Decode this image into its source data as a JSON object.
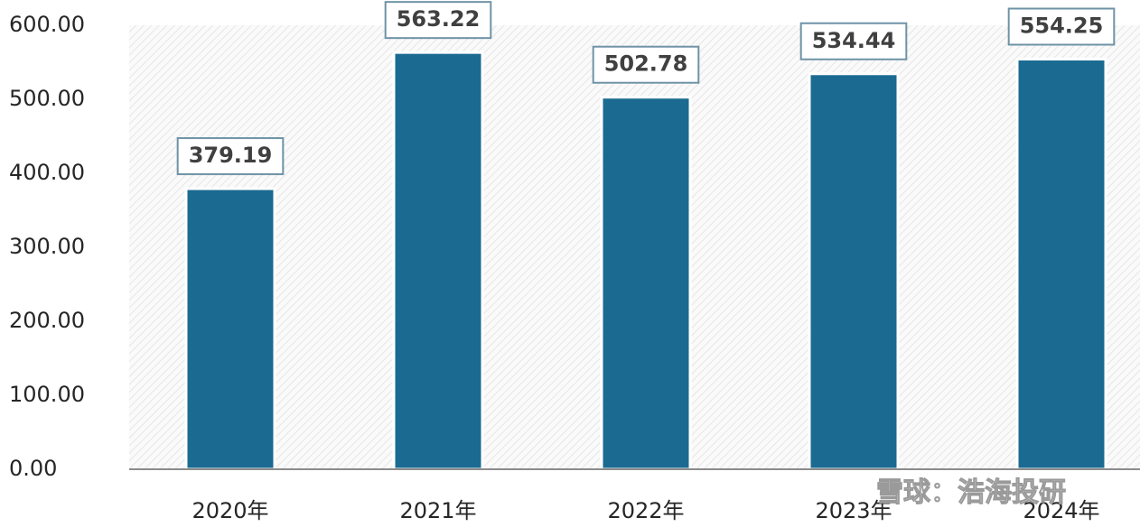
{
  "chart_data": {
    "type": "bar",
    "categories": [
      "2020年",
      "2021年",
      "2022年",
      "2023年",
      "2024年"
    ],
    "values": [
      379.19,
      563.22,
      502.78,
      534.44,
      554.25
    ],
    "color": "#1b6a92",
    "ylim": [
      0,
      600
    ],
    "yticks": [
      {
        "value": 0,
        "label": "0.00"
      },
      {
        "value": 100,
        "label": "100.00"
      },
      {
        "value": 200,
        "label": "200.00"
      },
      {
        "value": 300,
        "label": "300.00"
      },
      {
        "value": 400,
        "label": "400.00"
      },
      {
        "value": 500,
        "label": "500.00"
      },
      {
        "value": 600,
        "label": "600.00"
      }
    ],
    "grid": false
  },
  "watermark": "雪球：浩海投研"
}
